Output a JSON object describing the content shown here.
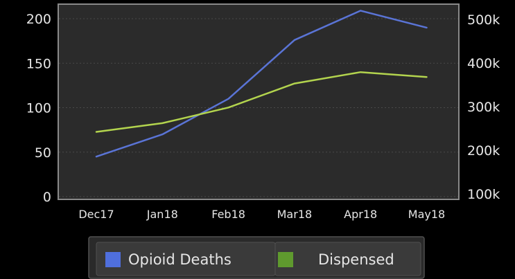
{
  "chart_data": {
    "type": "line",
    "categories": [
      "Dec17",
      "Jan18",
      "Feb18",
      "Mar18",
      "Apr18",
      "May18"
    ],
    "grid": true,
    "legend_position": "bottom",
    "y_left": {
      "ylim": [
        0,
        210
      ],
      "ticks": [
        0,
        50,
        100,
        150,
        200
      ],
      "tick_labels": [
        "0",
        "50",
        "100",
        "150",
        "200"
      ]
    },
    "y_right": {
      "ylim": [
        100000,
        525000
      ],
      "ticks": [
        100000,
        200000,
        300000,
        400000,
        500000
      ],
      "tick_labels": [
        "100k",
        "200k",
        "300k",
        "400k",
        "500k"
      ]
    },
    "series": [
      {
        "name": "Opioid Deaths",
        "axis": "left",
        "color": "#5a74d6",
        "legend_swatch_color": "#4f6fdd",
        "values": [
          45,
          70,
          110,
          176,
          209,
          190
        ]
      },
      {
        "name": "Dispensed",
        "axis": "right",
        "color": "#b3d44e",
        "legend_swatch_color": "#5f9a2e",
        "values": [
          242000,
          262000,
          298000,
          353000,
          379000,
          368000
        ]
      }
    ],
    "colors": {
      "background": "#000000",
      "plot_background": "#2b2b2b",
      "plot_border": "#8a8a8a",
      "grid": "#4a4a4a",
      "legend_box": "#2a2a2a",
      "legend_box_border": "#505050",
      "legend_item": "#3a3a3a",
      "text": "#e6e6e6"
    }
  }
}
